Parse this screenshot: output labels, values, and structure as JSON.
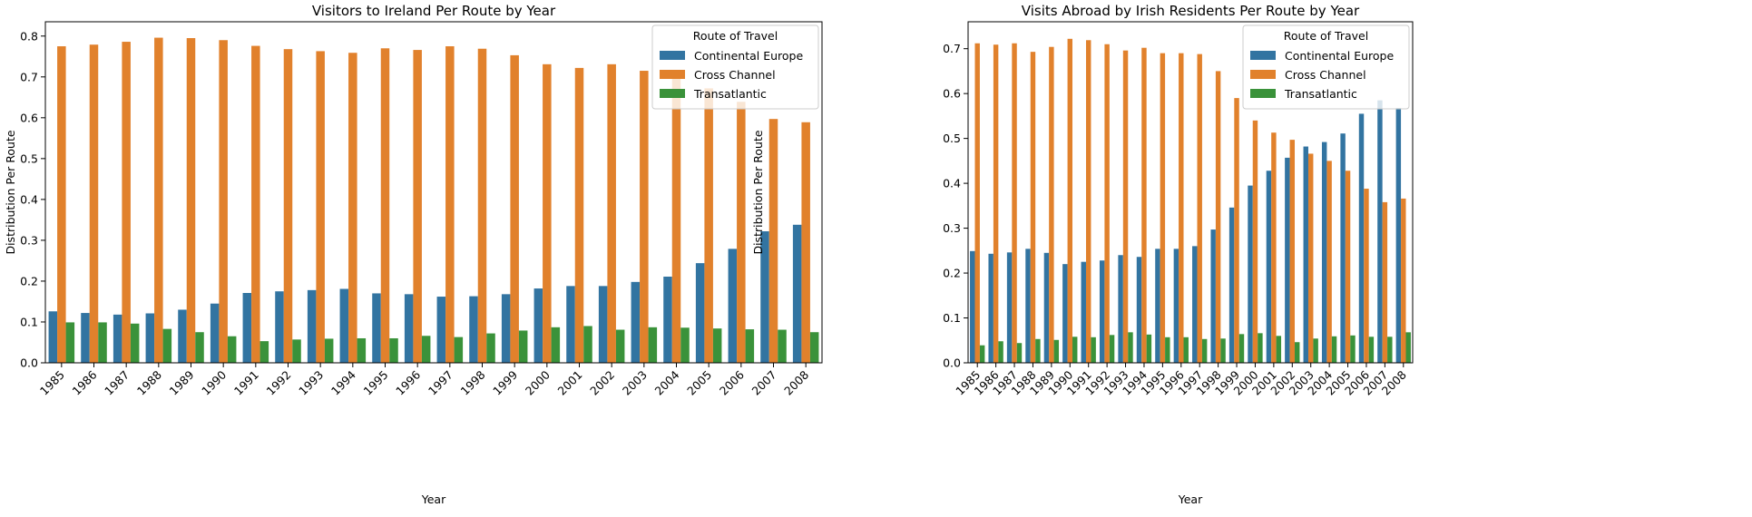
{
  "chart_data": [
    {
      "type": "bar",
      "title": "Visitors to Ireland Per Route by Year",
      "xlabel": "Year",
      "ylabel": "Distribution Per Route",
      "ylim": [
        0,
        0.835
      ],
      "yticks": [
        "0.0",
        "0.1",
        "0.2",
        "0.3",
        "0.4",
        "0.5",
        "0.6",
        "0.7",
        "0.8"
      ],
      "grid": false,
      "legend_title": "Route of Travel",
      "legend_position": "top-right",
      "categories": [
        "1985",
        "1986",
        "1987",
        "1988",
        "1989",
        "1990",
        "1991",
        "1992",
        "1993",
        "1994",
        "1995",
        "1996",
        "1997",
        "1998",
        "1999",
        "2000",
        "2001",
        "2002",
        "2003",
        "2004",
        "2005",
        "2006",
        "2007",
        "2008"
      ],
      "series": [
        {
          "name": "Continental Europe",
          "color": "#3274a1",
          "values": [
            0.126,
            0.122,
            0.118,
            0.121,
            0.13,
            0.145,
            0.171,
            0.175,
            0.178,
            0.181,
            0.17,
            0.168,
            0.162,
            0.163,
            0.168,
            0.182,
            0.188,
            0.188,
            0.198,
            0.211,
            0.244,
            0.279,
            0.322,
            0.338
          ]
        },
        {
          "name": "Cross Channel",
          "color": "#e1812c",
          "values": [
            0.775,
            0.779,
            0.786,
            0.796,
            0.795,
            0.79,
            0.776,
            0.768,
            0.763,
            0.759,
            0.77,
            0.766,
            0.775,
            0.769,
            0.753,
            0.731,
            0.722,
            0.731,
            0.715,
            0.703,
            0.672,
            0.639,
            0.597,
            0.589
          ]
        },
        {
          "name": "Transatlantic",
          "color": "#3a923a",
          "values": [
            0.099,
            0.099,
            0.096,
            0.083,
            0.075,
            0.065,
            0.053,
            0.057,
            0.059,
            0.06,
            0.06,
            0.066,
            0.063,
            0.072,
            0.079,
            0.087,
            0.09,
            0.081,
            0.087,
            0.086,
            0.084,
            0.082,
            0.081,
            0.075
          ]
        }
      ]
    },
    {
      "type": "bar",
      "title": "Visits Abroad by Irish Residents Per Route by Year",
      "xlabel": "Year",
      "ylabel": "Distribution Per Route",
      "ylim": [
        0,
        0.76
      ],
      "yticks": [
        "0.0",
        "0.1",
        "0.2",
        "0.3",
        "0.4",
        "0.5",
        "0.6",
        "0.7"
      ],
      "grid": false,
      "legend_title": "Route of Travel",
      "legend_position": "top-right",
      "categories": [
        "1985",
        "1986",
        "1987",
        "1988",
        "1989",
        "1990",
        "1991",
        "1992",
        "1993",
        "1994",
        "1995",
        "1996",
        "1997",
        "1998",
        "1999",
        "2000",
        "2001",
        "2002",
        "2003",
        "2004",
        "2005",
        "2006",
        "2007",
        "2008"
      ],
      "series": [
        {
          "name": "Continental Europe",
          "color": "#3274a1",
          "values": [
            0.249,
            0.243,
            0.246,
            0.254,
            0.245,
            0.22,
            0.225,
            0.228,
            0.24,
            0.236,
            0.254,
            0.254,
            0.26,
            0.297,
            0.346,
            0.395,
            0.428,
            0.457,
            0.482,
            0.492,
            0.511,
            0.555,
            0.585,
            0.568
          ]
        },
        {
          "name": "Cross Channel",
          "color": "#e1812c",
          "values": [
            0.712,
            0.709,
            0.712,
            0.693,
            0.704,
            0.722,
            0.719,
            0.71,
            0.696,
            0.702,
            0.69,
            0.69,
            0.688,
            0.65,
            0.59,
            0.54,
            0.513,
            0.497,
            0.466,
            0.45,
            0.428,
            0.388,
            0.358,
            0.366
          ]
        },
        {
          "name": "Transatlantic",
          "color": "#3a923a",
          "values": [
            0.039,
            0.048,
            0.044,
            0.053,
            0.051,
            0.058,
            0.057,
            0.062,
            0.068,
            0.063,
            0.057,
            0.057,
            0.053,
            0.054,
            0.064,
            0.066,
            0.06,
            0.046,
            0.054,
            0.059,
            0.061,
            0.058,
            0.058,
            0.068
          ]
        }
      ]
    }
  ]
}
